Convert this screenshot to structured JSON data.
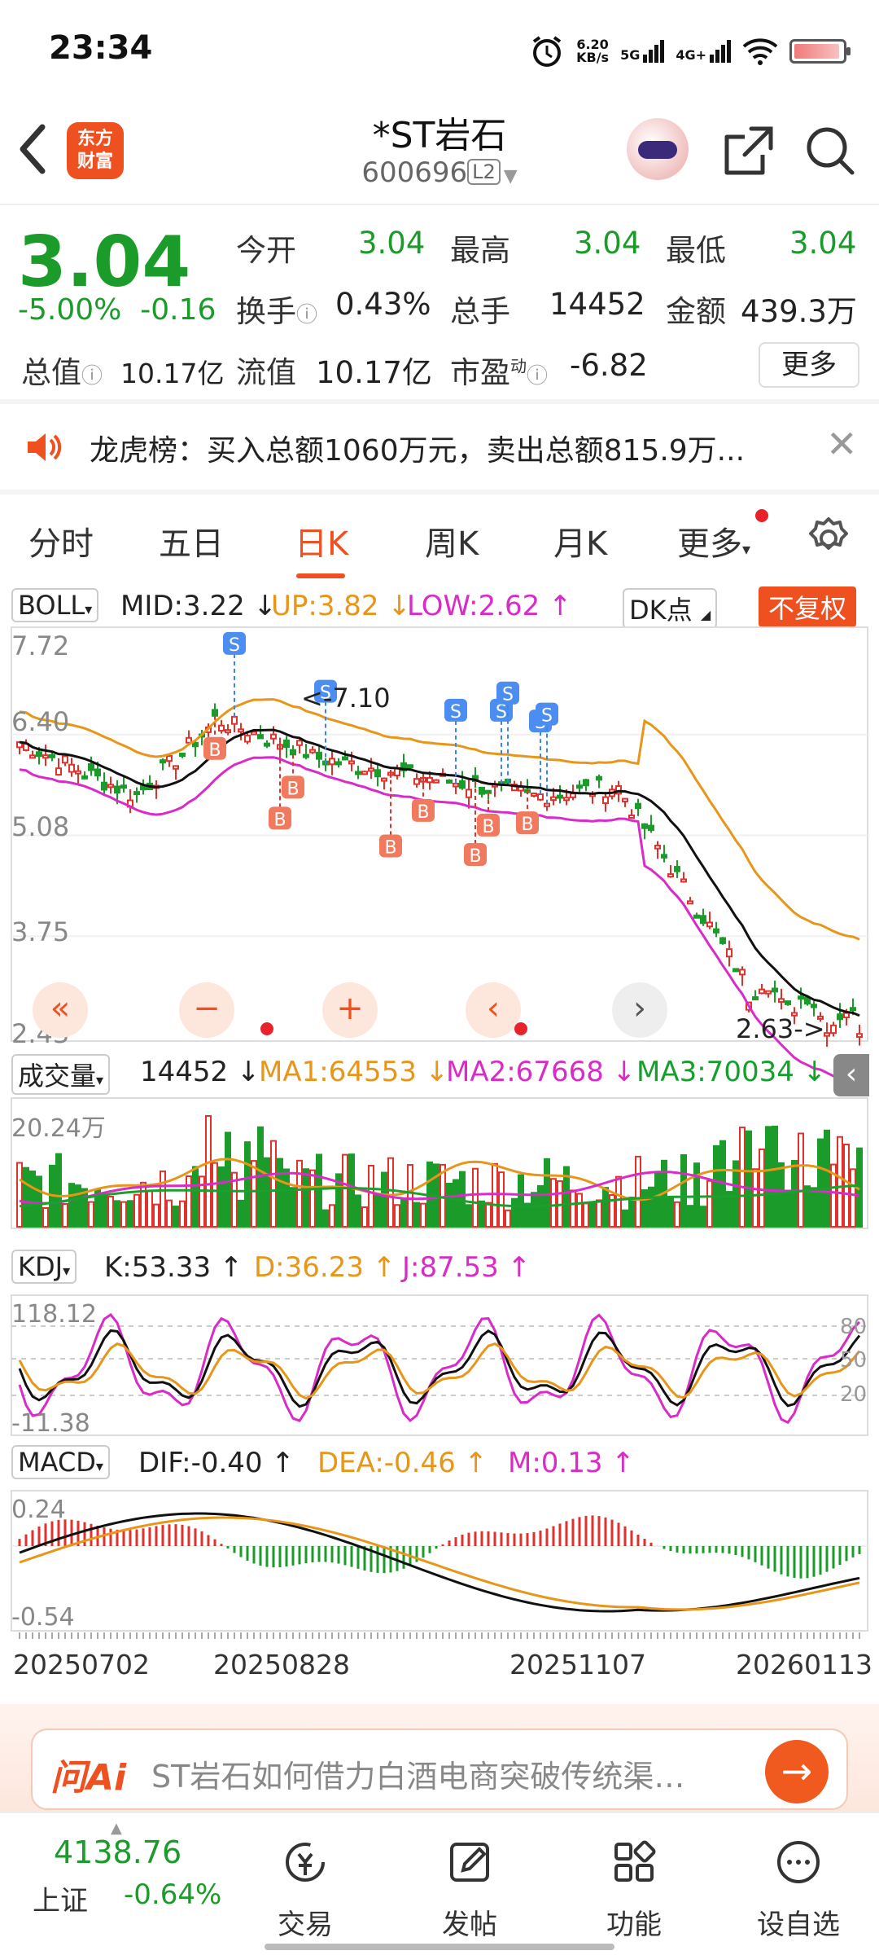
{
  "status_bar": {
    "time": "23:34",
    "net_speed": "6.20",
    "net_unit": "KB/s",
    "net_5g": "5G",
    "net_4g": "4G+"
  },
  "header": {
    "back_icon": "chevron-left-icon",
    "logo_line1": "东方",
    "logo_line2": "财富",
    "title": "*ST岩石",
    "code": "600696",
    "level": "L2"
  },
  "quote": {
    "price": "3.04",
    "change_pct": "-5.00%",
    "change_amt": "-0.16",
    "rows": [
      [
        {
          "label": "今开",
          "value": "3.04",
          "color": "green"
        },
        {
          "label": "最高",
          "value": "3.04",
          "color": "green"
        },
        {
          "label": "最低",
          "value": "3.04",
          "color": "green"
        }
      ],
      [
        {
          "label": "换手",
          "value": "0.43%",
          "color": "dark"
        },
        {
          "label": "总手",
          "value": "14452",
          "color": "dark"
        },
        {
          "label": "金额",
          "value": "439.3万",
          "color": "dark"
        }
      ]
    ],
    "total_value_label": "总值",
    "total_value": "10.17亿",
    "float_value_label": "流值",
    "float_value": "10.17亿",
    "pe_label": "市盈",
    "pe_sup": "动",
    "pe_value": "-6.82",
    "more_label": "更多"
  },
  "notice": {
    "text": "龙虎榜：买入总额1060万元，卖出总额815.9万..."
  },
  "tabs": [
    {
      "label": "分时"
    },
    {
      "label": "五日"
    },
    {
      "label": "日K"
    },
    {
      "label": "周K"
    },
    {
      "label": "月K"
    },
    {
      "label": "更多"
    }
  ],
  "boll": {
    "selector": "BOLL",
    "mid": "MID:3.22 ↓",
    "up": "UP:3.82 ↓",
    "low": "LOW:2.62 ↑",
    "dk": "DK点",
    "fuquan": "不复权",
    "axis": [
      "7.72",
      "6.40",
      "5.08",
      "3.75",
      "2.43"
    ],
    "max_label": "<-7.10",
    "min_label": "2.63->"
  },
  "volume": {
    "selector": "成交量",
    "value": "14452 ↓",
    "ma1": "MA1:64553 ↓",
    "ma2": "MA2:67668 ↓",
    "ma3": "MA3:70034 ↓",
    "axis_top": "20.24万"
  },
  "kdj": {
    "selector": "KDJ",
    "k": "K:53.33 ↑",
    "d": "D:36.23 ↑",
    "j": "J:87.53 ↑",
    "axis_top": "118.12",
    "axis_bottom": "-11.38",
    "ref80": "80",
    "ref50": "50",
    "ref20": "20"
  },
  "macd": {
    "selector": "MACD",
    "dif": "DIF:-0.40 ↑",
    "dea": "DEA:-0.46 ↑",
    "m": "M:0.13 ↑",
    "axis_top": "0.24",
    "axis_bottom": "-0.54",
    "dates": [
      "20250702",
      "20250828",
      "20251107",
      "20260113"
    ]
  },
  "ai": {
    "logo": "问Ai",
    "text": "ST岩石如何借力白酒电商突破传统渠…"
  },
  "bottom_nav": {
    "index_value": "4138.76",
    "index_name": "上证",
    "index_change": "-0.64%",
    "items": [
      {
        "label": "交易",
        "icon": "trade-icon"
      },
      {
        "label": "发帖",
        "icon": "edit-icon"
      },
      {
        "label": "功能",
        "icon": "grid-icon"
      },
      {
        "label": "设自选",
        "icon": "more-icon"
      }
    ]
  },
  "colors": {
    "up": "#e0322d",
    "down": "#1a9b2a",
    "accent": "#ef5020",
    "ma_orange": "#e8961a",
    "ma_magenta": "#d92bc8"
  }
}
